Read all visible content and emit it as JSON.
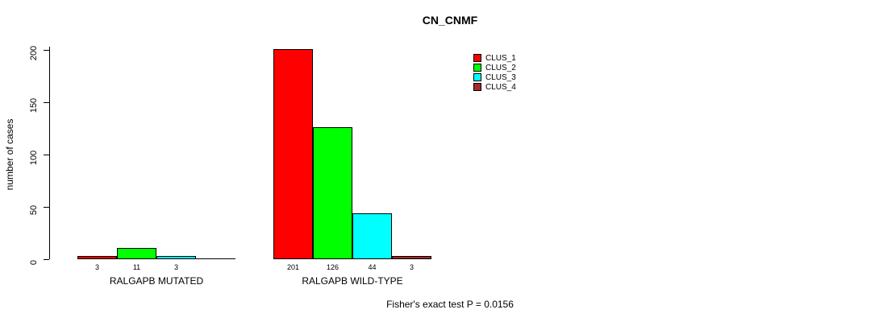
{
  "chart_data": {
    "type": "bar",
    "title": "CN_CNMF",
    "ylabel": "number of cases",
    "ylim": [
      0,
      200
    ],
    "yticks": [
      0,
      50,
      100,
      150,
      200
    ],
    "grid": false,
    "legend_position": "top-right",
    "bar_border_color": "#000000",
    "series": [
      {
        "name": "CLUS_1",
        "color": "#ff0000"
      },
      {
        "name": "CLUS_2",
        "color": "#00ff00"
      },
      {
        "name": "CLUS_3",
        "color": "#00ffff"
      },
      {
        "name": "CLUS_4",
        "color": "#a52a2a"
      }
    ],
    "groups": [
      {
        "label": "RALGAPB MUTATED",
        "values": [
          3,
          11,
          3,
          0
        ],
        "bar_labels": [
          "3",
          "11",
          "3",
          ""
        ]
      },
      {
        "label": "RALGAPB WILD-TYPE",
        "values": [
          201,
          126,
          44,
          3
        ],
        "bar_labels": [
          "201",
          "126",
          "44",
          "3"
        ]
      }
    ],
    "annotation": "Fisher's exact test P = 0.0156"
  }
}
